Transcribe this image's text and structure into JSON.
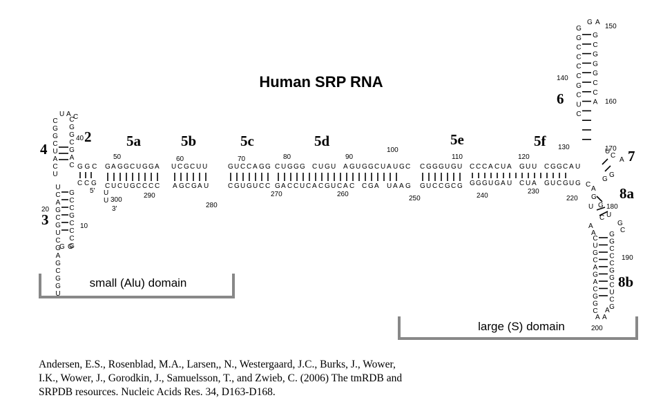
{
  "title": "Human SRP RNA",
  "helix_labels": [
    "2",
    "3",
    "4",
    "5a",
    "5b",
    "5c",
    "5d",
    "5e",
    "5f",
    "6",
    "7",
    "8a",
    "8b"
  ],
  "domains": {
    "small": "small (Alu) domain",
    "large": "large (S) domain"
  },
  "ends": {
    "five_prime": "5'",
    "three_prime": "3'"
  },
  "position_numbers": [
    "10",
    "20",
    "40",
    "50",
    "60",
    "70",
    "80",
    "90",
    "100",
    "110",
    "120",
    "130",
    "140",
    "150",
    "160",
    "170",
    "180",
    "190",
    "200",
    "220",
    "230",
    "240",
    "250",
    "260",
    "270",
    "280",
    "290",
    "300"
  ],
  "citation": [
    "Andersen, E.S., Rosenblad, M.A., Larsen,, N., Westergaard, J.C., Burks, J., Wower,",
    "I.K., Wower, J., Gorodkin, J., Samuelsson, T., and Zwieb, C. (2006) The tmRDB and",
    "SRPDB resources. Nucleic Acids Res. 34, D163-D168."
  ],
  "sequences": {
    "top_5a": "GAGGCUGGA",
    "bottom_5a": "CUCUGCCCC",
    "top_5b": "UCGCUU",
    "bottom_5b": "AGCGAU",
    "top_5c": "GUCCAGG",
    "bottom_5c": "CGUGUCC",
    "top_5d": "CUGGG CUGU AGUGGCUAUGC",
    "bottom_5d": "GACCUCACGUCAC CGA UAAG",
    "top_5e": "CGGGUGU",
    "bottom_5e": "GUCCGCG",
    "top_5f": "CCCACUA GUU CGGCAU",
    "bottom_5f": "GGGUGAU CUA GUCGUG",
    "helix6_left": "GGCCCCGCUC",
    "helix6_right": "GCGGGCCA",
    "helix8b_left": "CUGCAGACGGC",
    "helix8b_right": "GGCCCGGCUCG",
    "helix3_left": "UCAGCGUCGAGCGGU",
    "helix3_right": "GCCGCCCG",
    "helix4_left": "CGGCUACU",
    "helix4_right": "CGGCGAC"
  },
  "colors": {
    "text": "#000000",
    "bracket": "#888888",
    "background": "#ffffff"
  }
}
